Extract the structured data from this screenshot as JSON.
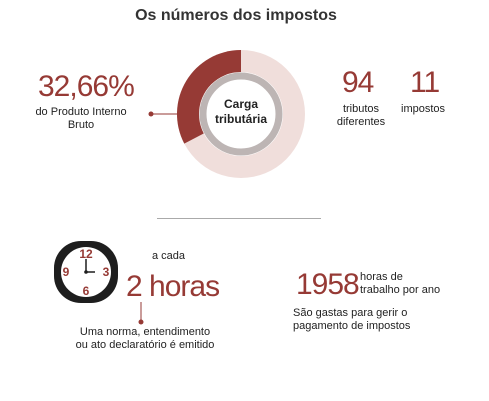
{
  "title": "Os números dos impostos",
  "pib": {
    "value": "32,66%",
    "caption_line1": "do Produto Interno",
    "caption_line2": "Bruto"
  },
  "chart_data": {
    "type": "pie",
    "title": "Carga tributária",
    "center_label_line1": "Carga",
    "center_label_line2": "tributária",
    "slices": [
      {
        "label": "Carga tributária",
        "value": 32.66,
        "color": "#963a35"
      },
      {
        "label": "",
        "value": 67.34,
        "color": "#f0dedb"
      }
    ]
  },
  "tributos": {
    "value": "94",
    "caption_line1": "tributos",
    "caption_line2": "diferentes"
  },
  "impostos": {
    "value": "11",
    "caption": "impostos"
  },
  "clock": {
    "numbers": [
      "12",
      "3",
      "6",
      "9"
    ],
    "color": "#963a35"
  },
  "frequency": {
    "prefix": "a cada",
    "value": "2 horas",
    "caption_line1": "Uma norma, entendimento",
    "caption_line2": "ou ato declaratório é emitido"
  },
  "hours": {
    "value": "1958",
    "suffix_line1": "horas de",
    "suffix_line2": "trabalho por ano",
    "caption_line1": "São gastas para gerir o",
    "caption_line2": "pagamento de impostos"
  },
  "colors": {
    "accent": "#963a35",
    "ring_light": "#f0dedb",
    "ring_grey": "#bdb5b4",
    "divider": "#aaaaaa"
  }
}
